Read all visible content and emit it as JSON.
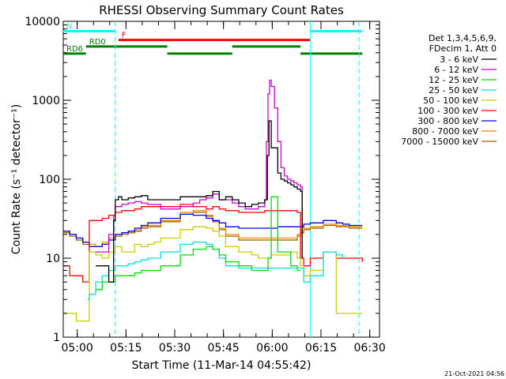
{
  "chart_data": {
    "type": "line",
    "title": "RHESSI Observing Summary Count Rates",
    "xlabel": "Start Time (11-Mar-14 04:55:42)",
    "ylabel": "Count Rate (s⁻¹ detector⁻¹)",
    "xlim": [
      "04:55:42",
      "06:33:00"
    ],
    "ylim": [
      1,
      10000
    ],
    "yscale": "log",
    "x_tick_labels": [
      "05:00",
      "05:15",
      "05:30",
      "05:45",
      "06:00",
      "06:15",
      "06:30"
    ],
    "x_ticks_min": [
      4.3,
      19.3,
      34.3,
      49.3,
      64.3,
      79.3,
      94.3
    ],
    "y_tick_labels": [
      "1",
      "10",
      "100",
      "1000",
      "10000"
    ],
    "y_ticks": [
      1,
      10,
      100,
      1000,
      10000
    ],
    "legend_header": [
      "Det 1,3,4,5,6,9,",
      "FDecim 1, Att 0"
    ],
    "legend_position": "right",
    "timestamp": "21-Oct-2021 04:56",
    "series": [
      {
        "name": "3 - 6 keV",
        "color": "#000000",
        "x": [
          0,
          8,
          10,
          14,
          15.5,
          16,
          17,
          18,
          20,
          22,
          24,
          26,
          30,
          36,
          42,
          44,
          46,
          48,
          50,
          52,
          54,
          56,
          58,
          60,
          62,
          62.8,
          63.3,
          64,
          66,
          67,
          68,
          69,
          70,
          71,
          72,
          73,
          73.5,
          74
        ],
        "y": [
          null,
          null,
          8,
          5,
          30,
          55,
          60,
          55,
          58,
          60,
          62,
          55,
          55,
          60,
          60,
          62,
          70,
          55,
          60,
          55,
          50,
          45,
          48,
          50,
          55,
          200,
          550,
          250,
          120,
          100,
          95,
          90,
          85,
          80,
          75,
          70,
          10,
          null
        ]
      },
      {
        "name": "6 - 12 keV",
        "color": "#cc00cc",
        "x": [
          0,
          8,
          10,
          14,
          15.5,
          16,
          18,
          20,
          22,
          24,
          26,
          30,
          36,
          40,
          42,
          44,
          46,
          48,
          50,
          52,
          54,
          56,
          58,
          60,
          62,
          62.5,
          63,
          63.5,
          64,
          65,
          66,
          67,
          68,
          69,
          70,
          71,
          72,
          73,
          73.5,
          74
        ],
        "y": [
          null,
          null,
          12,
          20,
          35,
          45,
          48,
          50,
          52,
          50,
          48,
          42,
          45,
          50,
          55,
          58,
          65,
          55,
          55,
          50,
          45,
          42,
          42,
          45,
          55,
          300,
          1200,
          1800,
          1500,
          800,
          300,
          140,
          110,
          100,
          95,
          90,
          85,
          80,
          20,
          null
        ]
      },
      {
        "name": "12 - 25 keV",
        "color": "#00dd00",
        "x": [
          0,
          8,
          10,
          12,
          14,
          16,
          18,
          20,
          22,
          24,
          26,
          30,
          36,
          40,
          44,
          46,
          48,
          50,
          54,
          58,
          60,
          62,
          63,
          64,
          66,
          70,
          72,
          73,
          74
        ],
        "y": [
          null,
          null,
          4,
          5,
          5,
          6,
          6,
          6,
          6.5,
          7,
          7,
          8,
          11,
          13,
          14,
          13,
          11,
          9,
          8,
          7,
          7,
          7,
          10,
          60,
          12,
          8,
          7,
          7,
          null
        ]
      },
      {
        "name": "25 - 50 keV",
        "color": "#00e0e0",
        "x": [
          0,
          6,
          7.5,
          8,
          10,
          12,
          14,
          16,
          18,
          20,
          22,
          24,
          26,
          30,
          36,
          40,
          44,
          46,
          48,
          50,
          54,
          58,
          60,
          62,
          64,
          66,
          70,
          72,
          73,
          74,
          76,
          80,
          84,
          86,
          88,
          92
        ],
        "y": [
          null,
          null,
          3,
          3.5,
          5,
          6,
          7,
          8,
          8,
          8.5,
          9,
          9.5,
          10,
          12,
          15,
          16,
          15,
          13,
          10,
          8,
          7.5,
          7.5,
          7.5,
          7.5,
          7.5,
          7.5,
          7.5,
          7.5,
          7.5,
          5,
          6,
          12,
          11,
          10,
          null,
          null
        ]
      },
      {
        "name": "50 - 100 keV",
        "color": "#cccc00",
        "x": [
          0,
          2,
          4,
          6,
          8,
          10,
          12,
          14,
          16,
          18,
          20,
          22,
          24,
          26,
          28,
          30,
          36,
          40,
          44,
          46,
          48,
          50,
          54,
          58,
          60,
          62,
          64,
          66,
          70,
          72,
          73,
          74,
          76,
          80,
          84,
          86,
          88,
          92
        ],
        "y": [
          2,
          2,
          1.6,
          1.6,
          12,
          11,
          10,
          12,
          14,
          12,
          12,
          15,
          14,
          15,
          16,
          18,
          23,
          25,
          24,
          22,
          19,
          14,
          12,
          11,
          10,
          10,
          11,
          11,
          12,
          10,
          8,
          6,
          7,
          12,
          2,
          2,
          2,
          2
        ]
      },
      {
        "name": "100 - 300 keV",
        "color": "#ff0000",
        "x": [
          0,
          2,
          4,
          6,
          8,
          10,
          12,
          14,
          16,
          18,
          20,
          22,
          24,
          26,
          30,
          36,
          40,
          44,
          46,
          48,
          50,
          54,
          58,
          60,
          62,
          64,
          66,
          70,
          72,
          73,
          74,
          76,
          80,
          84,
          86,
          88,
          92
        ],
        "y": [
          8,
          6,
          6,
          5,
          30,
          30,
          32,
          35,
          38,
          40,
          40,
          42,
          45,
          45,
          45,
          48,
          45,
          42,
          45,
          42,
          40,
          38,
          38,
          38,
          40,
          40,
          40,
          40,
          38,
          10,
          8,
          10,
          12,
          10,
          10,
          10,
          9
        ]
      },
      {
        "name": "300 - 800 keV",
        "color": "#0000ff",
        "x": [
          0,
          2,
          4,
          6,
          8,
          10,
          12,
          14,
          16,
          18,
          20,
          22,
          24,
          26,
          30,
          36,
          40,
          44,
          46,
          48,
          50,
          54,
          58,
          60,
          62,
          64,
          66,
          70,
          72,
          73,
          74,
          76,
          80,
          84,
          86,
          88,
          92
        ],
        "y": [
          22,
          20,
          18,
          16,
          14,
          14,
          15,
          17,
          20,
          21,
          22,
          24,
          26,
          28,
          32,
          36,
          35,
          32,
          30,
          28,
          25,
          24,
          24,
          24,
          24,
          24,
          25,
          25,
          25,
          25,
          27,
          28,
          30,
          28,
          27,
          26,
          26
        ]
      },
      {
        "name": "800 - 7000 keV",
        "color": "#ff8800",
        "x": [
          0,
          2,
          4,
          6,
          8,
          10,
          12,
          14,
          16,
          18,
          20,
          22,
          24,
          26,
          30,
          36,
          40,
          44,
          46,
          48,
          50,
          54,
          58,
          60,
          62,
          64,
          66,
          70,
          72,
          73,
          74,
          76,
          80,
          84,
          86,
          88,
          92
        ],
        "y": [
          22,
          20,
          18,
          16,
          15,
          14,
          16,
          18,
          20,
          21,
          22,
          23,
          25,
          26,
          30,
          38,
          40,
          35,
          30,
          24,
          20,
          18,
          18,
          18,
          18,
          18,
          18,
          18,
          20,
          22,
          24,
          25,
          27,
          26,
          26,
          25,
          25
        ]
      },
      {
        "name": "7000 - 15000 keV",
        "color": "#996600",
        "x": [
          0,
          2,
          4,
          6,
          8,
          10,
          12,
          14,
          16,
          18,
          20,
          22,
          24,
          26,
          30,
          36,
          40,
          44,
          46,
          48,
          50,
          54,
          58,
          60,
          62,
          64,
          66,
          70,
          72,
          73,
          74,
          76,
          80,
          84,
          86,
          88,
          92
        ],
        "y": [
          21,
          19,
          17,
          15,
          14,
          14,
          15,
          17,
          19,
          20,
          21,
          22,
          24,
          25,
          29,
          36,
          38,
          34,
          29,
          23,
          19,
          17,
          17,
          17,
          17,
          17,
          17,
          17,
          19,
          21,
          23,
          24,
          26,
          25,
          25,
          24,
          24
        ]
      }
    ],
    "segments": [
      {
        "label": "N",
        "color": "#00ffff",
        "x0": 0,
        "x1": 16,
        "y": 7500
      },
      {
        "label": "",
        "color": "#00ffff",
        "x0": 76,
        "x1": 92,
        "y": 7500
      },
      {
        "label": "F",
        "color": "#ff0000",
        "x0": 17,
        "x1": 76,
        "y": 5800
      },
      {
        "label": "RD0",
        "color": "#008000",
        "x0": 7,
        "x1": 32,
        "y": 4800
      },
      {
        "label": "",
        "color": "#008000",
        "x0": 52,
        "x1": 73,
        "y": 4800
      },
      {
        "label": "RD6",
        "color": "#008000",
        "x0": 0,
        "x1": 7,
        "y": 3900
      },
      {
        "label": "",
        "color": "#008000",
        "x0": 32,
        "x1": 52,
        "y": 3900
      },
      {
        "label": "",
        "color": "#008000",
        "x0": 73,
        "x1": 92,
        "y": 3900
      }
    ],
    "vlines": [
      {
        "x": 16,
        "color": "#00ffff",
        "style": "dashed"
      },
      {
        "x": 76,
        "color": "#00ffff",
        "style": "solid"
      },
      {
        "x": 91,
        "color": "#00ffff",
        "style": "dashed"
      }
    ]
  }
}
